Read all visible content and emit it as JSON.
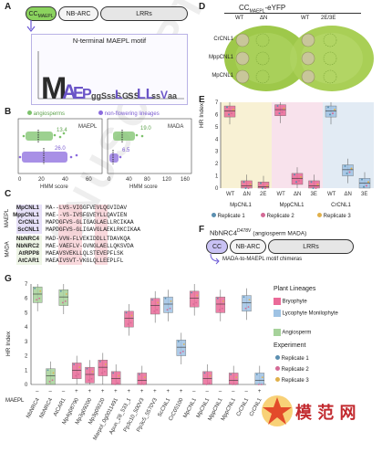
{
  "panels": {
    "A": {
      "label": "A",
      "domains": [
        "CC",
        "NB-ARC",
        "LRRs"
      ],
      "cc_subscript": "MAEPL",
      "motif_title": "N-terminal MAEPL motif"
    },
    "B": {
      "label": "B",
      "legend": [
        {
          "name": "angiosperms",
          "color": "#7cc26b"
        },
        {
          "name": "non-flowering lineages",
          "color": "#8b6bde"
        }
      ],
      "subpanels": [
        {
          "title": "MAEPL",
          "green_value": "13.4",
          "purple_value": "26.0",
          "xlabel": "HMM score",
          "ticks": [
            "0",
            "20",
            "40",
            "60"
          ]
        },
        {
          "title": "MADA",
          "green_value": "19.0",
          "purple_value": "6.5",
          "xlabel": "HMM score",
          "ticks": [
            "0",
            "40",
            "80",
            "120",
            "160"
          ]
        }
      ]
    },
    "C": {
      "label": "C",
      "group_labels": [
        "MAEPL",
        "MADA"
      ],
      "rows": [
        {
          "name": "MpCNL1",
          "seq": "MA--LVS-VIGGFVEVLQGVIDAV"
        },
        {
          "name": "MppCNL1",
          "seq": "MAE--VS-IVSFGVEYLLQAVIEN"
        },
        {
          "name": "CrCNL1",
          "seq": "MAPDGFVS-GLIGAGLAELLRCIKAA"
        },
        {
          "name": "ScCNL1",
          "seq": "MAPDGFVS-GLIGAVGLAEKLRKCIKAA"
        },
        {
          "name": "NbNRC4",
          "seq": "MAD-VVN-FLVEKIDDLLTDAVKQA"
        },
        {
          "name": "NbNRC2",
          "seq": "MAE-VAEFLV-GVNGLAELLQKSVDA"
        },
        {
          "name": "AtRPP8",
          "seq": "MAEAVSVEKLLQLSTEVEPFLSK"
        },
        {
          "name": "AtCAR1",
          "seq": "MAEAIVSVT-VKGLQLLEEPLFL"
        }
      ]
    },
    "D": {
      "label": "D",
      "title": "CC",
      "title_sub": "MAEPL",
      "title_suffix": "-eYFP",
      "left_cols": [
        "WT",
        "ΔN"
      ],
      "right_cols": [
        "WT",
        "2E/3E"
      ],
      "rows": [
        "CrCNL1",
        "MppCNL1",
        "MpCNL1"
      ]
    },
    "E": {
      "label": "E",
      "ylabel": "HR Index",
      "yticks": [
        "0",
        "1",
        "2",
        "3",
        "4",
        "5",
        "6",
        "7"
      ],
      "groups": [
        {
          "name": "MpCNL1",
          "labels": [
            "WT",
            "ΔN",
            "2E"
          ]
        },
        {
          "name": "MppCNL1",
          "labels": [
            "WT",
            "ΔN",
            "3E"
          ]
        },
        {
          "name": "CrCNL1",
          "labels": [
            "WT",
            "ΔN",
            "3E"
          ]
        }
      ],
      "legend": [
        "Replicate 1",
        "Replicate 2",
        "Replicate 3"
      ]
    },
    "F": {
      "label": "F",
      "construct": "NbNRC4",
      "construct_sup": "D478V",
      "construct_note": "(angiosperm MADA)",
      "domains": [
        "CC",
        "NB-ARC",
        "LRRs"
      ],
      "arrow_text": "MADA-to-MAEPL motif chimeras"
    },
    "G": {
      "label": "G",
      "ylabel": "HR Index",
      "yticks": [
        "0",
        "1",
        "2",
        "3",
        "4",
        "5",
        "6",
        "7"
      ],
      "maepl_label": "MAEPL",
      "signs": [
        "–",
        "–",
        "–",
        "+",
        "+",
        "+",
        "+",
        "+",
        "+",
        "+",
        "+",
        "+",
        "–",
        "–",
        "–",
        "–",
        "–",
        "+"
      ],
      "categories": [
        "NbNRC4",
        "NbNRC4",
        "AtCAR1",
        "Mp4g08790",
        "Mp3g09200",
        "Mp3g09220",
        "Marpol_0g0011491",
        "Apun_28_533_1",
        "Pp3c10_500V3",
        "Pp3c5_5570V3",
        "ScCNL1",
        "CrC05100",
        "MpCNL1",
        "MpCNL1",
        "MppCNL1",
        "MppCNL1",
        "CrCNL1",
        "CrCNL1"
      ],
      "legend_title_1": "Plant Lineages",
      "lineages": [
        {
          "name": "Bryophyte",
          "color": "#ea6a98"
        },
        {
          "name": "Lycophyte Monilophyte",
          "color": "#9fc3e4"
        },
        {
          "name": "Angiosperm",
          "color": "#a6d29a"
        }
      ],
      "legend_title_2": "Experiment",
      "replicates": [
        {
          "name": "Replicate 1",
          "color": "#5b8fb0"
        },
        {
          "name": "Replicate 2",
          "color": "#d46a96"
        },
        {
          "name": "Replicate 3",
          "color": "#e0b04a"
        }
      ]
    }
  },
  "chart_data": [
    {
      "type": "bar",
      "title": "",
      "ylabel": "HR Index",
      "ylim": [
        0,
        7
      ],
      "categories": [
        "MpCNL1 WT",
        "MpCNL1 ΔN",
        "MpCNL1 2E",
        "MppCNL1 WT",
        "MppCNL1 ΔN",
        "MppCNL1 3E",
        "CrCNL1 WT",
        "CrCNL1 ΔN",
        "CrCNL1 3E"
      ],
      "values": [
        6.3,
        0.2,
        0.1,
        6.4,
        0.8,
        0.2,
        6.3,
        1.5,
        0.4
      ]
    },
    {
      "type": "bar",
      "title": "",
      "ylabel": "HR Index",
      "ylim": [
        0,
        7
      ],
      "categories": [
        "NbNRC4",
        "NbNRC4 chimera",
        "AtCAR1",
        "Mp4g08790",
        "Mp3g09200",
        "Mp3g09220",
        "Marpol_0g0011491",
        "Apun_28_533_1",
        "Pp3c10_500V3",
        "Pp3c5_5570V3",
        "ScCNL1",
        "CrC05100",
        "MpCNL1",
        "MpCNL1 chimera",
        "MppCNL1",
        "MppCNL1 chimera",
        "CrCNL1",
        "CrCNL1 chimera"
      ],
      "values": [
        6.3,
        0.6,
        6.1,
        1.0,
        0.7,
        1.2,
        0.4,
        4.6,
        0.3,
        5.5,
        5.6,
        2.6,
        6.0,
        0.4,
        5.6,
        0.3,
        5.7,
        0.3
      ]
    }
  ]
}
